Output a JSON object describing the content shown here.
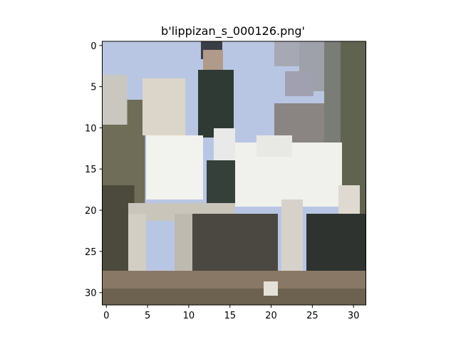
{
  "figure": {
    "title": "b'lippizan_s_000126.png'"
  },
  "image": {
    "subject": "white lippizan horse with rider",
    "pixel_grid": [
      32,
      32
    ],
    "palette": {
      "sky": "#b9c6e3",
      "sky_light": "#cdd3ea",
      "horse_white": "#f2f2ee",
      "horse_shade": "#c9c5bb",
      "rider_dark": "#2f3a34",
      "rider_face": "#b09a8a",
      "foliage": "#6f6c58",
      "foliage_dark": "#4b4a3c",
      "ground": "#8a7866",
      "ground_dark": "#3c3b35",
      "tree_grey": "#9e9ea6"
    }
  },
  "axes": {
    "x_ticks": [
      "0",
      "5",
      "10",
      "15",
      "20",
      "25",
      "30"
    ],
    "y_ticks": [
      "0",
      "5",
      "10",
      "15",
      "20",
      "25",
      "30"
    ],
    "xlim": [
      -0.5,
      31.5
    ],
    "ylim": [
      31.5,
      -0.5
    ]
  }
}
